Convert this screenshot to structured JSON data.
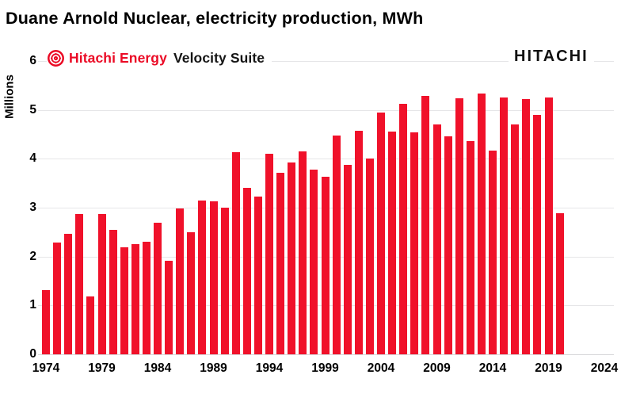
{
  "title": "Duane Arnold Nuclear, electricity production, MWh",
  "branding": {
    "hitachi_energy": "Hitachi Energy",
    "velocity_suite": "Velocity Suite",
    "hitachi_logo": "HITACHI"
  },
  "colors": {
    "bar_red": "#F0112A",
    "logo_red": "#EB0A25",
    "gridline": "#e6e6e8",
    "text": "#000000"
  },
  "chart_data": {
    "type": "bar",
    "title": "Duane Arnold Nuclear, electricity production, MWh",
    "xlabel": "",
    "ylabel": "Millions",
    "unit": "MWh (millions)",
    "ylim": [
      0,
      6
    ],
    "yticks": [
      0,
      1,
      2,
      3,
      4,
      5,
      6
    ],
    "xticks": [
      1974,
      1979,
      1984,
      1989,
      1994,
      1999,
      2004,
      2009,
      2014,
      2019,
      2024
    ],
    "grid": "horizontal-light",
    "legend": "none",
    "bar_color": "#F0112A",
    "categories": [
      1974,
      1975,
      1976,
      1977,
      1978,
      1979,
      1980,
      1981,
      1982,
      1983,
      1984,
      1985,
      1986,
      1987,
      1988,
      1989,
      1990,
      1991,
      1992,
      1993,
      1994,
      1995,
      1996,
      1997,
      1998,
      1999,
      2000,
      2001,
      2002,
      2003,
      2004,
      2005,
      2006,
      2007,
      2008,
      2009,
      2010,
      2011,
      2012,
      2013,
      2014,
      2015,
      2016,
      2017,
      2018,
      2019,
      2020
    ],
    "values": [
      1.31,
      2.29,
      2.46,
      2.87,
      1.19,
      2.87,
      2.55,
      2.19,
      2.25,
      2.31,
      2.69,
      1.92,
      2.98,
      2.5,
      3.15,
      3.13,
      3.0,
      4.13,
      3.4,
      3.23,
      4.1,
      3.71,
      3.93,
      4.15,
      3.78,
      3.64,
      4.47,
      3.87,
      4.58,
      4.0,
      4.94,
      4.55,
      5.12,
      4.54,
      5.29,
      4.7,
      4.46,
      5.23,
      4.36,
      5.33,
      4.16,
      5.25,
      4.71,
      5.22,
      4.9,
      5.25,
      2.89
    ]
  }
}
